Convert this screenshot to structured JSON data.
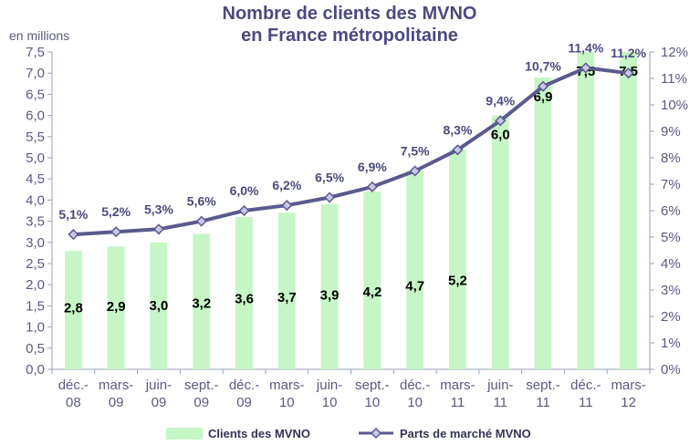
{
  "chart_data": {
    "type": "bar",
    "title_line1": "Nombre de clients des MVNO",
    "title_line2": "en France métropolitaine",
    "unit_label": "en millions",
    "categories": [
      [
        "déc.-",
        "08"
      ],
      [
        "mars-",
        "09"
      ],
      [
        "juin-",
        "09"
      ],
      [
        "sept.-",
        "09"
      ],
      [
        "déc.-",
        "09"
      ],
      [
        "mars-",
        "10"
      ],
      [
        "juin-",
        "10"
      ],
      [
        "sept.-",
        "10"
      ],
      [
        "déc.-",
        "10"
      ],
      [
        "mars-",
        "11"
      ],
      [
        "juin-",
        "11"
      ],
      [
        "sept.-",
        "11"
      ],
      [
        "déc.-",
        "11"
      ],
      [
        "mars-",
        "12"
      ]
    ],
    "series": [
      {
        "name": "Clients des MVNO",
        "type": "bar",
        "axis": "left",
        "color": "#c6f5c6",
        "values": [
          2.8,
          2.9,
          3.0,
          3.2,
          3.6,
          3.7,
          3.9,
          4.2,
          4.7,
          5.2,
          6.0,
          6.9,
          7.5,
          7.5
        ],
        "labels": [
          "2,8",
          "2,9",
          "3,0",
          "3,2",
          "3,6",
          "3,7",
          "3,9",
          "4,2",
          "4,7",
          "5,2",
          "6,0",
          "6,9",
          "7,5",
          "7,5"
        ]
      },
      {
        "name": "Parts de marché MVNO",
        "type": "line",
        "axis": "right",
        "color": "#5a5a8e",
        "marker_fill": "#c8c8e6",
        "values": [
          5.1,
          5.2,
          5.3,
          5.6,
          6.0,
          6.2,
          6.5,
          6.9,
          7.5,
          8.3,
          9.4,
          10.7,
          11.4,
          11.2
        ],
        "labels": [
          "5,1%",
          "5,2%",
          "5,3%",
          "5,6%",
          "6,0%",
          "6,2%",
          "6,5%",
          "6,9%",
          "7,5%",
          "8,3%",
          "9,4%",
          "10,7%",
          "11,4%",
          "11,2%"
        ]
      }
    ],
    "ylim": [
      0,
      7.5
    ],
    "y_ticks": [
      "0,0",
      "0,5",
      "1,0",
      "1,5",
      "2,0",
      "2,5",
      "3,0",
      "3,5",
      "4,0",
      "4,5",
      "5,0",
      "5,5",
      "6,0",
      "6,5",
      "7,0",
      "7,5"
    ],
    "y2lim": [
      0,
      12
    ],
    "y2_ticks": [
      "0%",
      "1%",
      "2%",
      "3%",
      "4%",
      "5%",
      "6%",
      "7%",
      "8%",
      "9%",
      "10%",
      "11%",
      "12%"
    ],
    "grid": false,
    "legend_position": "bottom"
  }
}
